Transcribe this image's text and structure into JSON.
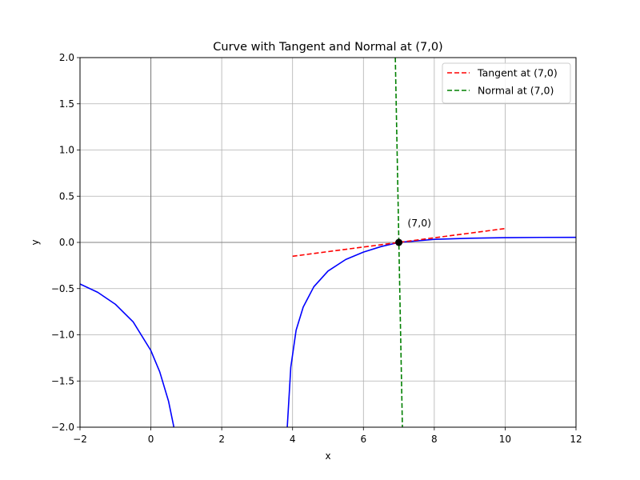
{
  "chart_data": {
    "type": "line",
    "title": "Curve with Tangent and Normal at (7,0)",
    "xlabel": "x",
    "ylabel": "y",
    "xlim": [
      -2,
      12
    ],
    "ylim": [
      -2,
      2
    ],
    "xticks": [
      -2,
      0,
      2,
      4,
      6,
      8,
      10,
      12
    ],
    "xtick_labels": [
      "−2",
      "0",
      "2",
      "4",
      "6",
      "8",
      "10",
      "12"
    ],
    "yticks": [
      -2.0,
      -1.5,
      -1.0,
      -0.5,
      0.0,
      0.5,
      1.0,
      1.5,
      2.0
    ],
    "ytick_labels": [
      "−2.0",
      "−1.5",
      "−1.0",
      "−0.5",
      "0.0",
      "0.5",
      "1.0",
      "1.5",
      "2.0"
    ],
    "grid": true,
    "legend_position": "top-right",
    "series": [
      {
        "role": "curve",
        "color": "#0000ff",
        "style": "solid",
        "segments": [
          {
            "x": [
              -2,
              -1.5,
              -1,
              -0.5,
              0,
              0.25,
              0.5,
              0.65
            ],
            "y": [
              -0.45,
              -0.54,
              -0.67,
              -0.86,
              -1.17,
              -1.4,
              -1.72,
              -2.0
            ]
          },
          {
            "x": [
              3.85,
              3.95,
              4.1,
              4.3,
              4.6,
              5.0,
              5.5,
              6.0,
              6.5,
              7.0,
              8.0,
              9.0,
              10.0,
              11.0,
              12.0
            ],
            "y": [
              -2.0,
              -1.35,
              -0.95,
              -0.7,
              -0.48,
              -0.31,
              -0.185,
              -0.105,
              -0.045,
              0.0,
              0.033,
              0.045,
              0.051,
              0.054,
              0.055
            ]
          }
        ]
      },
      {
        "name": "Tangent at (7,0)",
        "color": "#ff0000",
        "style": "dashed",
        "x": [
          4,
          10
        ],
        "y": [
          -0.15,
          0.15
        ]
      },
      {
        "name": "Normal at (7,0)",
        "color": "#008000",
        "style": "dashed",
        "x": [
          6.9,
          7.1
        ],
        "y": [
          2.0,
          -2.0
        ]
      }
    ],
    "point": {
      "x": 7,
      "y": 0,
      "color": "#000000"
    },
    "annotation": {
      "text": "(7,0)",
      "x": 7.2,
      "y": 0.2
    }
  }
}
